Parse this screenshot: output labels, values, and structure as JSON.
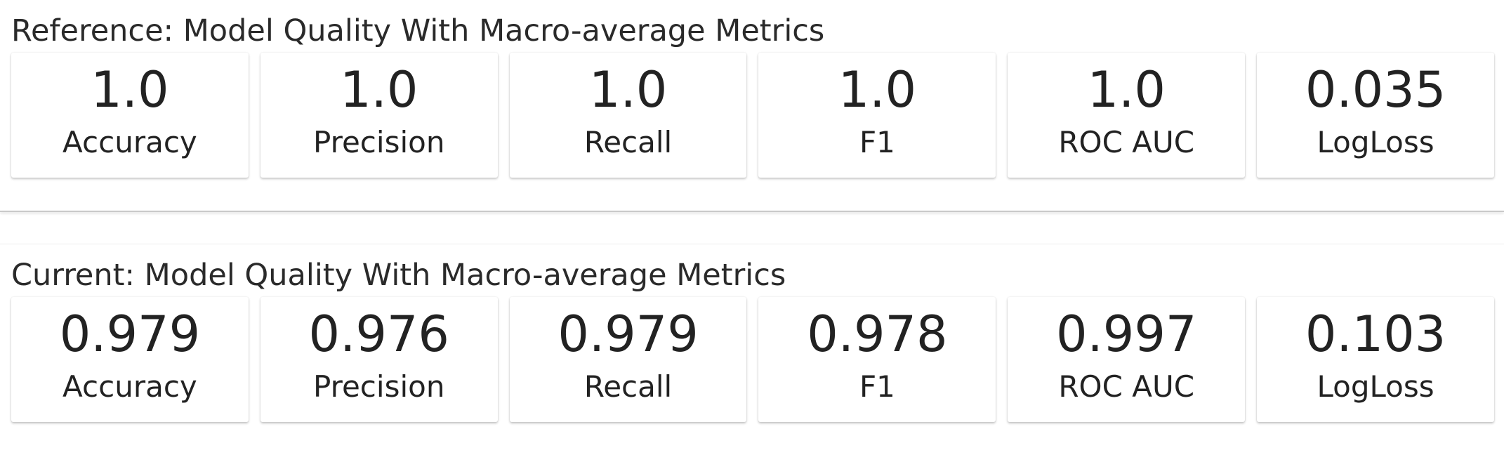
{
  "reference": {
    "title": "Reference: Model Quality With Macro-average Metrics",
    "metrics": [
      {
        "value": "1.0",
        "label": "Accuracy"
      },
      {
        "value": "1.0",
        "label": "Precision"
      },
      {
        "value": "1.0",
        "label": "Recall"
      },
      {
        "value": "1.0",
        "label": "F1"
      },
      {
        "value": "1.0",
        "label": "ROC AUC"
      },
      {
        "value": "0.035",
        "label": "LogLoss"
      }
    ]
  },
  "current": {
    "title": "Current: Model Quality With Macro-average Metrics",
    "metrics": [
      {
        "value": "0.979",
        "label": "Accuracy"
      },
      {
        "value": "0.976",
        "label": "Precision"
      },
      {
        "value": "0.979",
        "label": "Recall"
      },
      {
        "value": "0.978",
        "label": "F1"
      },
      {
        "value": "0.997",
        "label": "ROC AUC"
      },
      {
        "value": "0.103",
        "label": "LogLoss"
      }
    ]
  }
}
